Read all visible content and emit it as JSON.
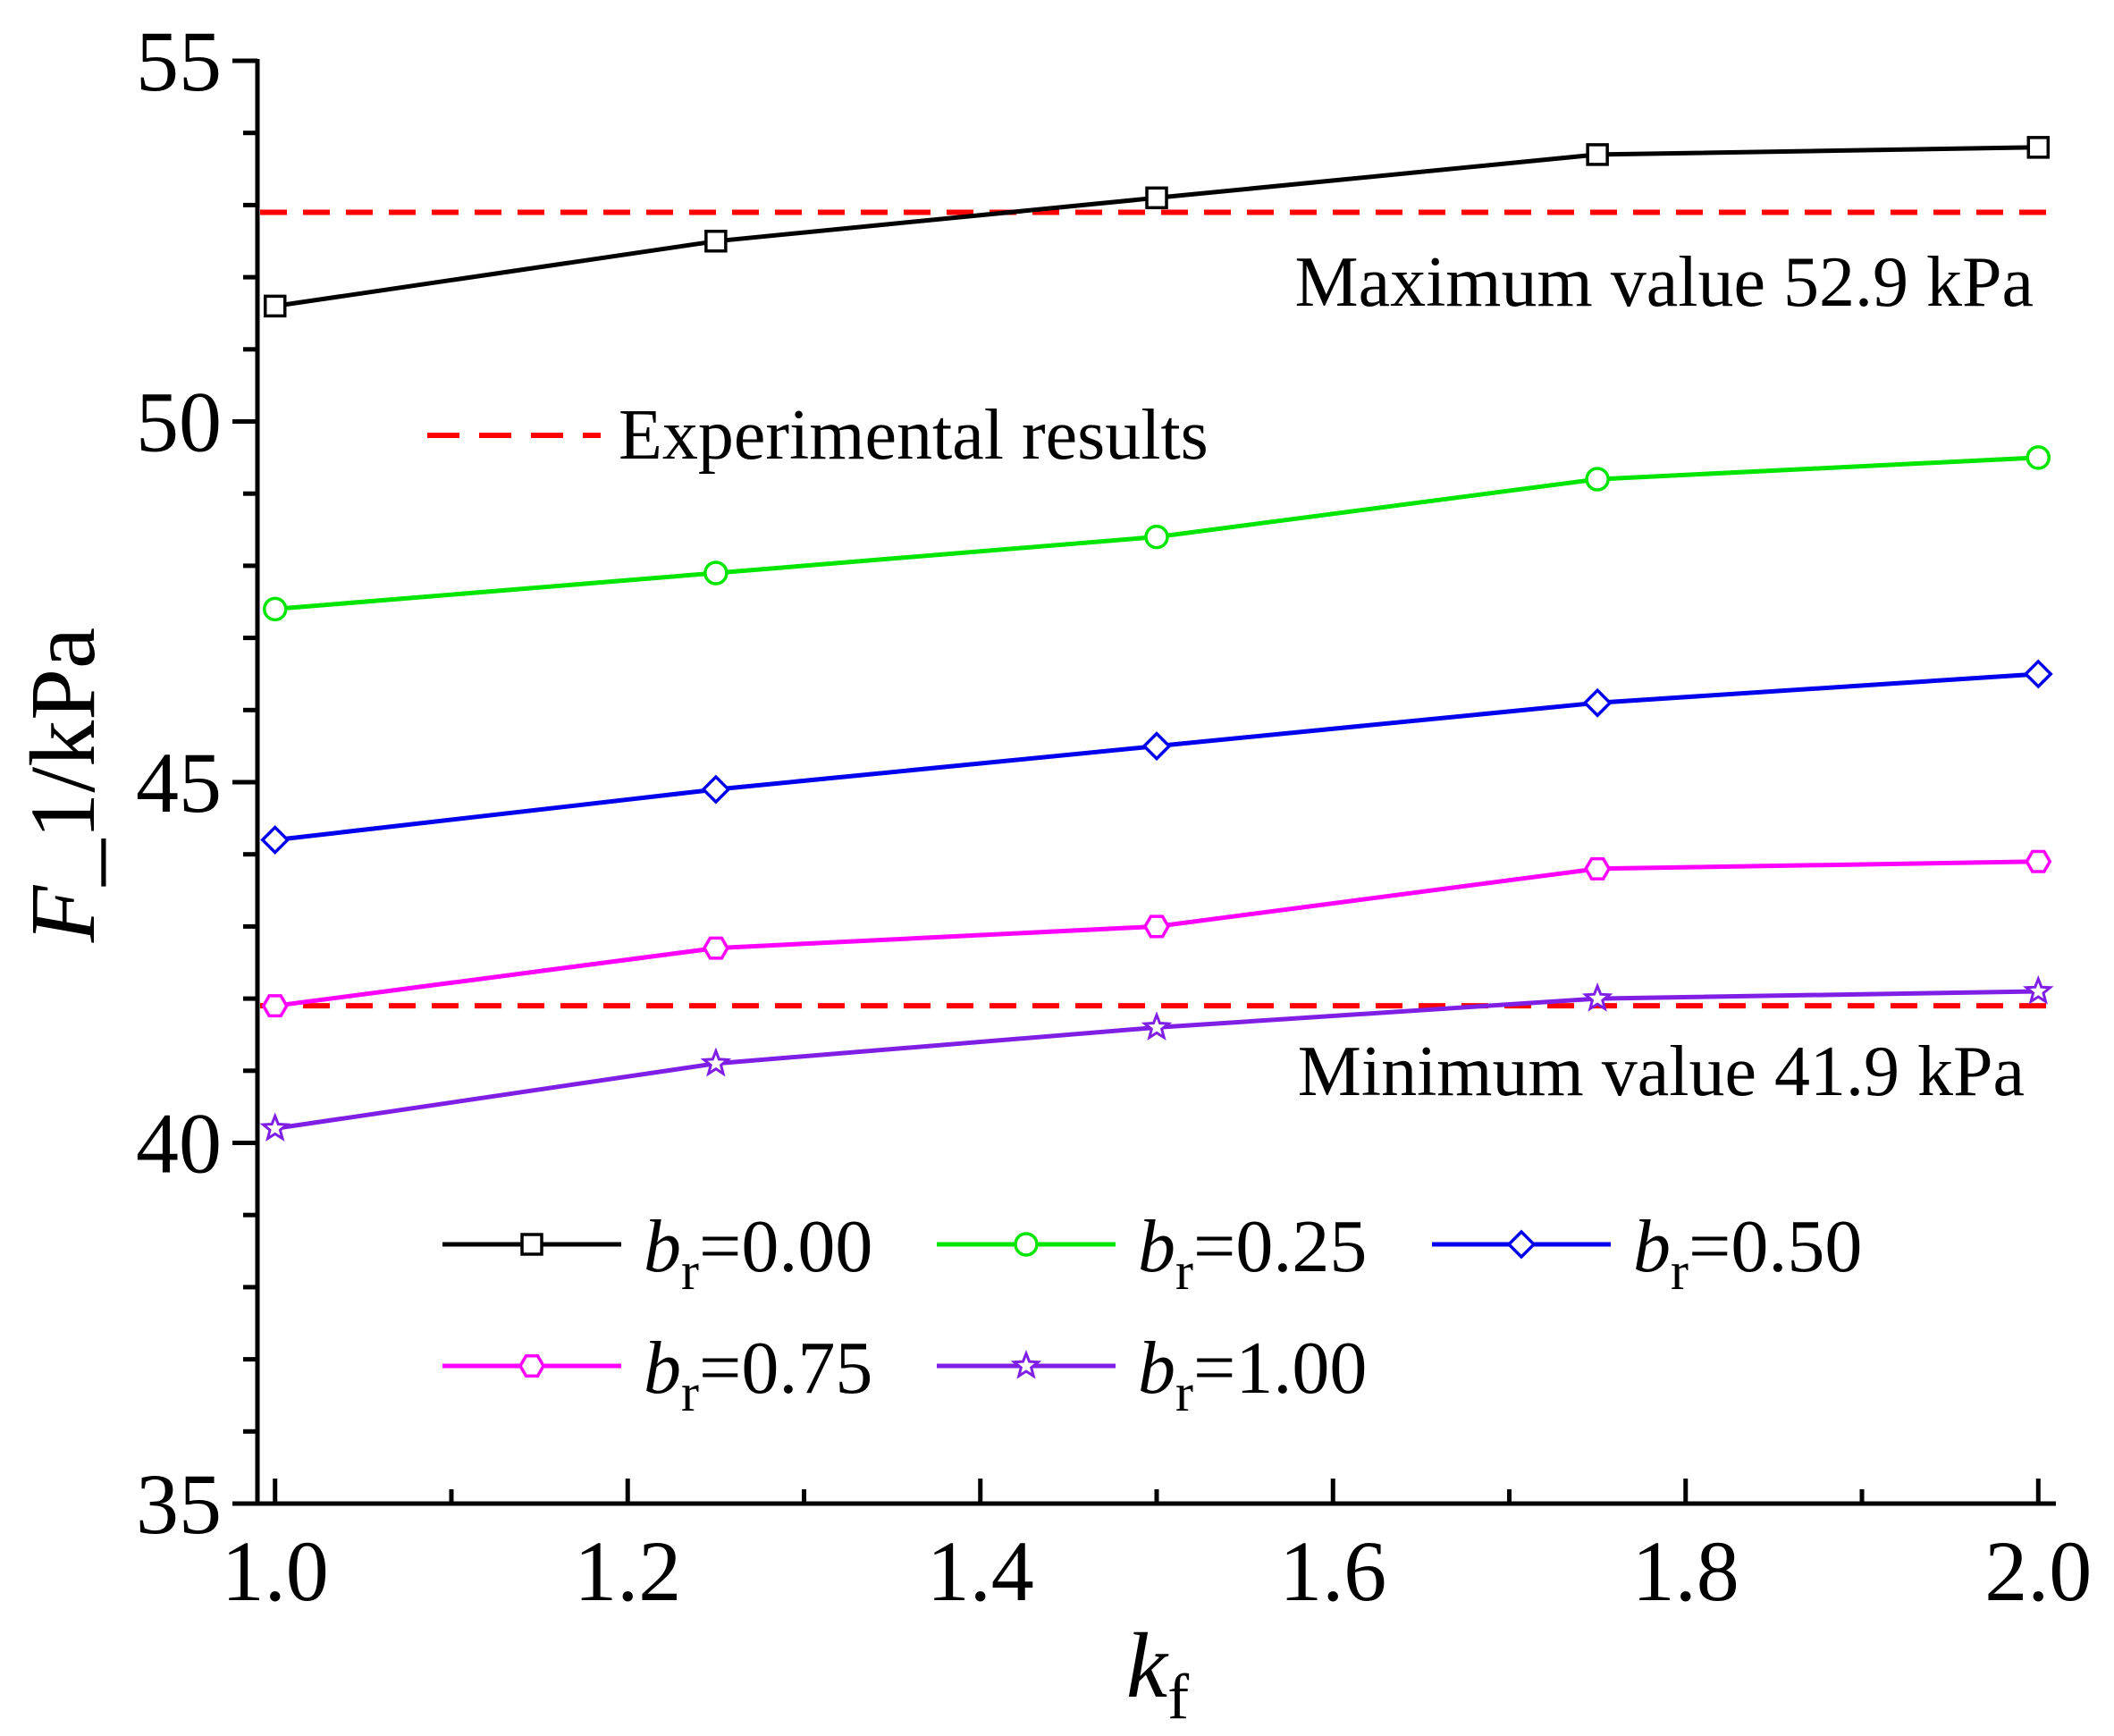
{
  "chart_data": {
    "type": "line",
    "xlabel": {
      "main": "k",
      "sub": "f"
    },
    "ylabel": "F_1/kPa",
    "xlim": [
      0.99,
      2.01
    ],
    "ylim": [
      35,
      55
    ],
    "x_ticks": [
      "1.0",
      "1.2",
      "1.4",
      "1.6",
      "1.8",
      "2.0"
    ],
    "y_ticks": [
      "35",
      "40",
      "45",
      "50",
      "55"
    ],
    "x": [
      1.0,
      1.25,
      1.5,
      1.75,
      2.0
    ],
    "series": [
      {
        "name": "br=0.00",
        "label_main": "b",
        "label_sub": "r",
        "label_value": "=0.00",
        "color": "#000000",
        "marker": "square",
        "values": [
          51.6,
          52.5,
          53.1,
          53.7,
          53.8
        ]
      },
      {
        "name": "br=0.25",
        "label_main": "b",
        "label_sub": "r",
        "label_value": "=0.25",
        "color": "#00e600",
        "marker": "circle",
        "values": [
          47.4,
          47.9,
          48.4,
          49.2,
          49.5
        ]
      },
      {
        "name": "br=0.50",
        "label_main": "b",
        "label_sub": "r",
        "label_value": "=0.50",
        "color": "#0000ee",
        "marker": "diamond",
        "values": [
          44.2,
          44.9,
          45.5,
          46.1,
          46.5
        ]
      },
      {
        "name": "br=0.75",
        "label_main": "b",
        "label_sub": "r",
        "label_value": "=0.75",
        "color": "#ff00ff",
        "marker": "hexagon",
        "values": [
          41.9,
          42.7,
          43.0,
          43.8,
          43.9
        ]
      },
      {
        "name": "br=1.00",
        "label_main": "b",
        "label_sub": "r",
        "label_value": "=1.00",
        "color": "#7f1fe6",
        "marker": "star",
        "values": [
          40.2,
          41.1,
          41.6,
          42.0,
          42.1
        ]
      }
    ],
    "reference_lines": [
      {
        "name": "max",
        "value": 52.9,
        "color": "#ff0000",
        "label": "Maximum value 52.9 kPa"
      },
      {
        "name": "min",
        "value": 41.9,
        "color": "#ff0000",
        "label": "Minimum value 41.9 kPa"
      }
    ],
    "experimental_legend": "Experimental results"
  }
}
